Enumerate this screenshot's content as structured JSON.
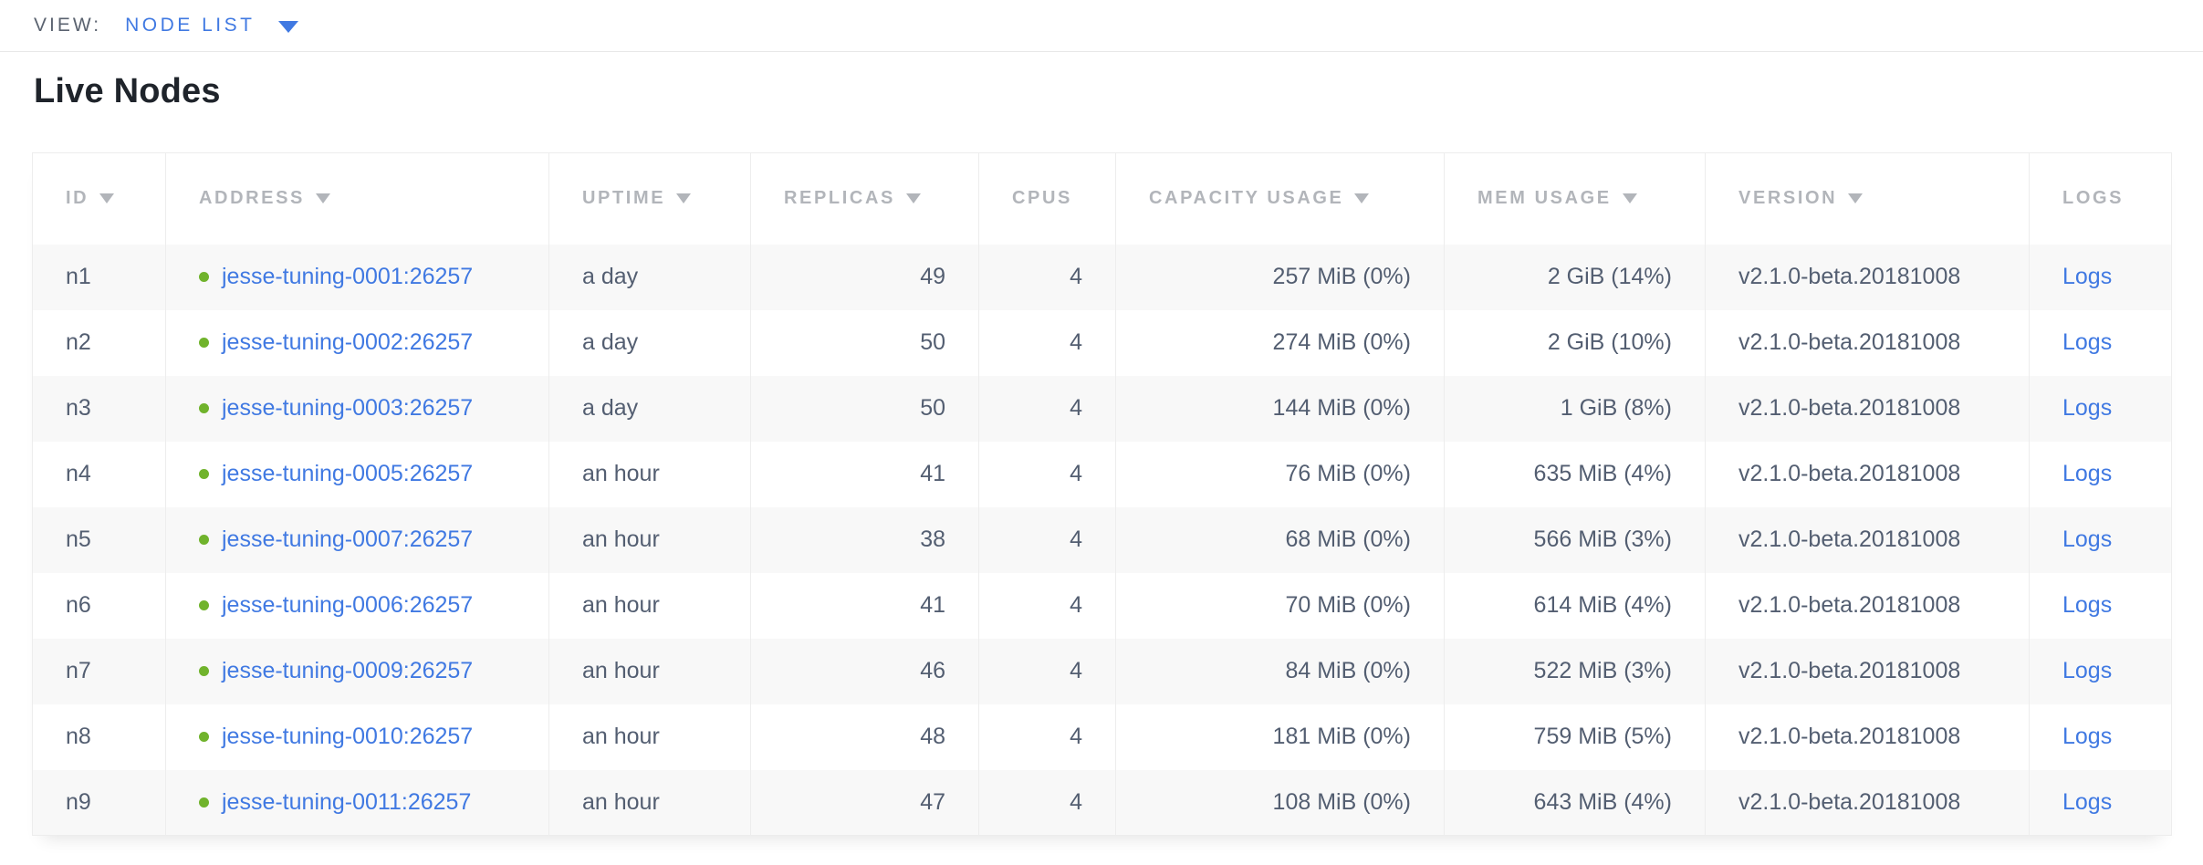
{
  "view_bar": {
    "label": "VIEW:",
    "selected_view": "NODE LIST",
    "dropdown_icon": "triangle-down"
  },
  "page": {
    "title": "Live Nodes"
  },
  "colors": {
    "accent_blue": "#4079e2",
    "node_live_green": "#70b32c"
  },
  "icons": {
    "sort": "triangle-down",
    "node_status": "green-dot"
  },
  "table": {
    "columns": [
      {
        "key": "id",
        "label": "ID",
        "sort_arrow": true,
        "align": "left"
      },
      {
        "key": "address",
        "label": "ADDRESS",
        "sort_arrow": true,
        "align": "left"
      },
      {
        "key": "uptime",
        "label": "UPTIME",
        "sort_arrow": true,
        "align": "left"
      },
      {
        "key": "replicas",
        "label": "REPLICAS",
        "sort_arrow": true,
        "align": "right"
      },
      {
        "key": "cpus",
        "label": "CPUS",
        "sort_arrow": false,
        "align": "right"
      },
      {
        "key": "capacity_usage",
        "label": "CAPACITY USAGE",
        "sort_arrow": true,
        "align": "right"
      },
      {
        "key": "mem_usage",
        "label": "MEM USAGE",
        "sort_arrow": true,
        "align": "right"
      },
      {
        "key": "version",
        "label": "VERSION",
        "sort_arrow": true,
        "align": "left"
      },
      {
        "key": "logs",
        "label": "LOGS",
        "sort_arrow": false,
        "align": "left"
      }
    ],
    "rows": [
      {
        "id": "n1",
        "status": "live",
        "address": "jesse-tuning-0001:26257",
        "uptime": "a day",
        "replicas": "49",
        "cpus": "4",
        "capacity_usage": "257 MiB (0%)",
        "mem_usage": "2 GiB (14%)",
        "version": "v2.1.0-beta.20181008",
        "logs": "Logs"
      },
      {
        "id": "n2",
        "status": "live",
        "address": "jesse-tuning-0002:26257",
        "uptime": "a day",
        "replicas": "50",
        "cpus": "4",
        "capacity_usage": "274 MiB (0%)",
        "mem_usage": "2 GiB (10%)",
        "version": "v2.1.0-beta.20181008",
        "logs": "Logs"
      },
      {
        "id": "n3",
        "status": "live",
        "address": "jesse-tuning-0003:26257",
        "uptime": "a day",
        "replicas": "50",
        "cpus": "4",
        "capacity_usage": "144 MiB (0%)",
        "mem_usage": "1 GiB (8%)",
        "version": "v2.1.0-beta.20181008",
        "logs": "Logs"
      },
      {
        "id": "n4",
        "status": "live",
        "address": "jesse-tuning-0005:26257",
        "uptime": "an hour",
        "replicas": "41",
        "cpus": "4",
        "capacity_usage": "76 MiB (0%)",
        "mem_usage": "635 MiB (4%)",
        "version": "v2.1.0-beta.20181008",
        "logs": "Logs"
      },
      {
        "id": "n5",
        "status": "live",
        "address": "jesse-tuning-0007:26257",
        "uptime": "an hour",
        "replicas": "38",
        "cpus": "4",
        "capacity_usage": "68 MiB (0%)",
        "mem_usage": "566 MiB (3%)",
        "version": "v2.1.0-beta.20181008",
        "logs": "Logs"
      },
      {
        "id": "n6",
        "status": "live",
        "address": "jesse-tuning-0006:26257",
        "uptime": "an hour",
        "replicas": "41",
        "cpus": "4",
        "capacity_usage": "70 MiB (0%)",
        "mem_usage": "614 MiB (4%)",
        "version": "v2.1.0-beta.20181008",
        "logs": "Logs"
      },
      {
        "id": "n7",
        "status": "live",
        "address": "jesse-tuning-0009:26257",
        "uptime": "an hour",
        "replicas": "46",
        "cpus": "4",
        "capacity_usage": "84 MiB (0%)",
        "mem_usage": "522 MiB (3%)",
        "version": "v2.1.0-beta.20181008",
        "logs": "Logs"
      },
      {
        "id": "n8",
        "status": "live",
        "address": "jesse-tuning-0010:26257",
        "uptime": "an hour",
        "replicas": "48",
        "cpus": "4",
        "capacity_usage": "181 MiB (0%)",
        "mem_usage": "759 MiB (5%)",
        "version": "v2.1.0-beta.20181008",
        "logs": "Logs"
      },
      {
        "id": "n9",
        "status": "live",
        "address": "jesse-tuning-0011:26257",
        "uptime": "an hour",
        "replicas": "47",
        "cpus": "4",
        "capacity_usage": "108 MiB (0%)",
        "mem_usage": "643 MiB (4%)",
        "version": "v2.1.0-beta.20181008",
        "logs": "Logs"
      }
    ]
  }
}
